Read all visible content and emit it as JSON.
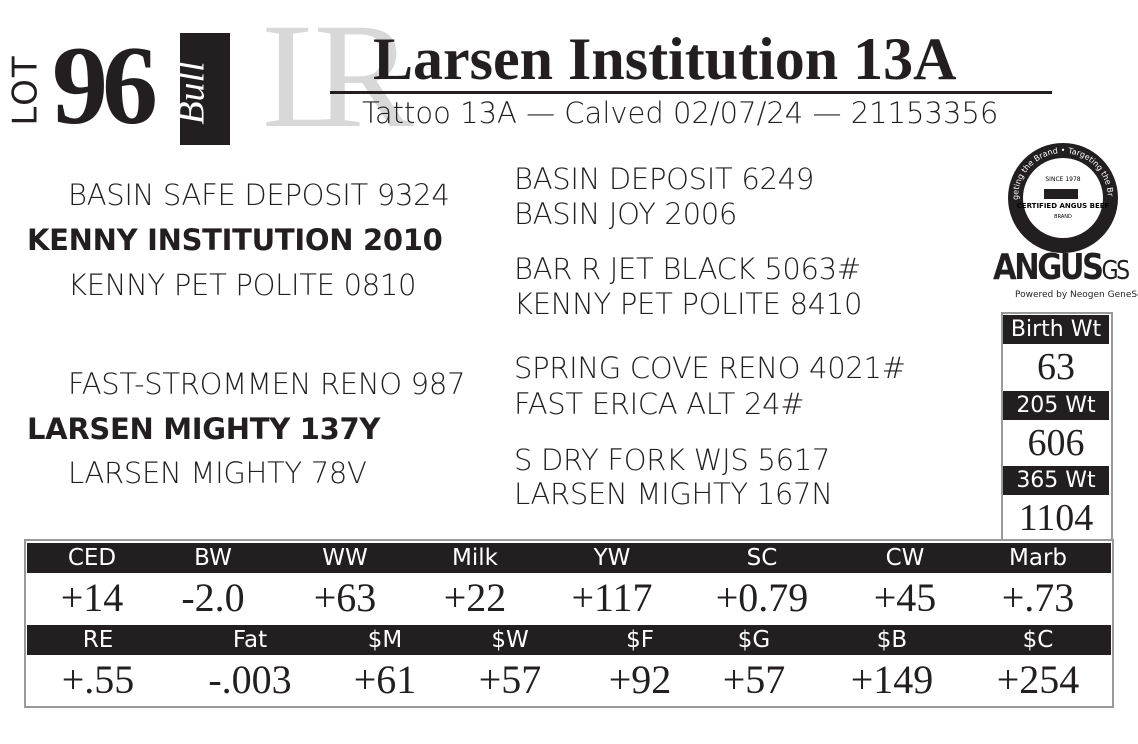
{
  "watermark": "LR",
  "lot": {
    "label": "LOT",
    "number": "96",
    "sex": "Bull"
  },
  "title": "Larsen Institution 13A",
  "subtitle": "Tattoo 13A  —  Calved 02/07/24  —  21153356",
  "pedigree": {
    "sire": "KENNY INSTITUTION 2010",
    "sire_sire": "BASIN SAFE DEPOSIT 9324",
    "sire_dam": "KENNY PET POLITE 0810",
    "dam": "LARSEN MIGHTY 137Y",
    "dam_sire": "FAST-STROMMEN RENO 987",
    "dam_dam": "LARSEN MIGHTY 78V",
    "third_generation": [
      "BASIN DEPOSIT 6249",
      "BASIN JOY 2006",
      "BAR R JET BLACK 5063#",
      "KENNY PET POLITE 8410",
      "SPRING COVE RENO 4021#",
      "FAST ERICA ALT 24#",
      "S DRY FORK WJS 5617",
      "LARSEN MIGHTY 167N"
    ]
  },
  "badges": {
    "cab_ring": "Targeting the Brand • Targeting the Brand",
    "cab_since": "SINCE 1978",
    "cab_name": "CERTIFIED ANGUS BEEF",
    "cab_brand": "BRAND",
    "angus": "ANGUS",
    "gs": "GS",
    "angus_tagline": "Powered by Neogen GeneSeek"
  },
  "weights": [
    {
      "label": "Birth Wt",
      "value": "63"
    },
    {
      "label": "205 Wt",
      "value": "606"
    },
    {
      "label": "365 Wt",
      "value": "1104"
    }
  ],
  "epds": [
    [
      {
        "label": "CED",
        "value": "+14"
      },
      {
        "label": "BW",
        "value": "-2.0"
      },
      {
        "label": "WW",
        "value": "+63"
      },
      {
        "label": "Milk",
        "value": "+22"
      },
      {
        "label": "YW",
        "value": "+117"
      },
      {
        "label": "SC",
        "value": "+0.79"
      },
      {
        "label": "CW",
        "value": "+45"
      },
      {
        "label": "Marb",
        "value": "+.73"
      }
    ],
    [
      {
        "label": "RE",
        "value": "+.55"
      },
      {
        "label": "Fat",
        "value": "-.003"
      },
      {
        "label": "$M",
        "value": "+61"
      },
      {
        "label": "$W",
        "value": "+57"
      },
      {
        "label": "$F",
        "value": "+92"
      },
      {
        "label": "$G",
        "value": "+57"
      },
      {
        "label": "$B",
        "value": "+149"
      },
      {
        "label": "$C",
        "value": "+254"
      }
    ]
  ]
}
